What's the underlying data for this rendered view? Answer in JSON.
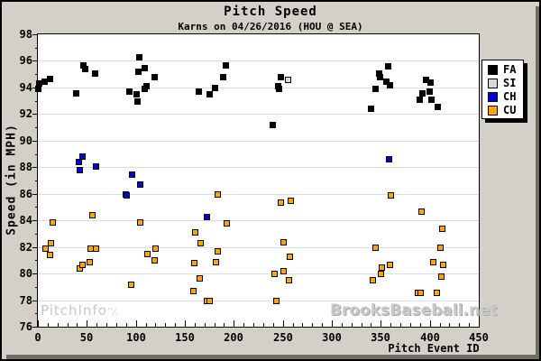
{
  "watermarks": {
    "left": "PitchInfo",
    "right": "BrooksBaseball.net"
  },
  "chart_data": {
    "type": "scatter",
    "title": "Pitch Speed",
    "subtitle": "Karns on 04/26/2016 (HOU @ SEA)",
    "xlabel": "Pitch Event ID",
    "ylabel": "Speed (in MPH)",
    "xlim": [
      0,
      450
    ],
    "ylim": [
      76,
      98
    ],
    "x_tick_step_major": 50,
    "x_tick_step_minor": 10,
    "y_tick_step_major": 2,
    "y_tick_step_minor": 1,
    "grid": "horizontal",
    "gridline_values": [
      78,
      80,
      82,
      84,
      86,
      88,
      90,
      92,
      94,
      96
    ],
    "legend_position": "right-outside",
    "plot_bg": "#ffffff",
    "page_bg": "#d4d0c8",
    "series": [
      {
        "name": "FA",
        "color": "#000000",
        "points": [
          [
            0,
            93.9
          ],
          [
            1,
            94.3
          ],
          [
            6,
            94.5
          ],
          [
            12,
            94.7
          ],
          [
            39,
            93.6
          ],
          [
            46,
            95.7
          ],
          [
            48,
            95.4
          ],
          [
            58,
            95.1
          ],
          [
            93,
            93.7
          ],
          [
            100,
            93.5
          ],
          [
            101,
            93.0
          ],
          [
            102,
            95.2
          ],
          [
            103,
            96.3
          ],
          [
            109,
            95.5
          ],
          [
            109,
            93.9
          ],
          [
            110,
            94.1
          ],
          [
            119,
            94.8
          ],
          [
            164,
            93.7
          ],
          [
            175,
            93.5
          ],
          [
            180,
            94.0
          ],
          [
            189,
            94.8
          ],
          [
            191,
            95.7
          ],
          [
            239,
            91.2
          ],
          [
            245,
            94.1
          ],
          [
            246,
            93.9
          ],
          [
            248,
            94.8
          ],
          [
            340,
            92.4
          ],
          [
            344,
            93.9
          ],
          [
            348,
            95.1
          ],
          [
            349,
            94.8
          ],
          [
            355,
            94.5
          ],
          [
            357,
            95.6
          ],
          [
            359,
            94.2
          ],
          [
            389,
            93.1
          ],
          [
            392,
            93.6
          ],
          [
            396,
            94.6
          ],
          [
            399,
            93.7
          ],
          [
            400,
            94.4
          ],
          [
            401,
            93.1
          ],
          [
            408,
            92.6
          ]
        ]
      },
      {
        "name": "SI",
        "color": "#d9d9d9",
        "points": [
          [
            255,
            94.6
          ]
        ]
      },
      {
        "name": "CH",
        "color": "#0000d2",
        "points": [
          [
            41,
            88.4
          ],
          [
            42,
            87.8
          ],
          [
            45,
            88.8
          ],
          [
            59,
            88.1
          ],
          [
            89,
            86.0
          ],
          [
            90,
            85.9
          ],
          [
            96,
            87.5
          ],
          [
            104,
            86.7
          ],
          [
            172,
            84.3
          ],
          [
            358,
            88.6
          ]
        ]
      },
      {
        "name": "CU",
        "color": "#ffa500",
        "points": [
          [
            7,
            81.9
          ],
          [
            12,
            81.4
          ],
          [
            13,
            82.3
          ],
          [
            15,
            83.9
          ],
          [
            42,
            80.4
          ],
          [
            45,
            80.7
          ],
          [
            52,
            80.9
          ],
          [
            53,
            81.9
          ],
          [
            55,
            84.4
          ],
          [
            59,
            81.9
          ],
          [
            95,
            79.2
          ],
          [
            104,
            83.9
          ],
          [
            111,
            81.5
          ],
          [
            119,
            81.0
          ],
          [
            120,
            81.9
          ],
          [
            158,
            78.7
          ],
          [
            159,
            80.8
          ],
          [
            160,
            83.1
          ],
          [
            165,
            79.7
          ],
          [
            166,
            82.3
          ],
          [
            172,
            78.0
          ],
          [
            175,
            78.0
          ],
          [
            181,
            80.9
          ],
          [
            183,
            86.0
          ],
          [
            183,
            81.7
          ],
          [
            192,
            83.8
          ],
          [
            241,
            80.0
          ],
          [
            243,
            78.0
          ],
          [
            248,
            85.4
          ],
          [
            250,
            82.4
          ],
          [
            250,
            80.2
          ],
          [
            256,
            79.5
          ],
          [
            257,
            81.3
          ],
          [
            258,
            85.5
          ],
          [
            341,
            79.5
          ],
          [
            344,
            82.0
          ],
          [
            350,
            80.0
          ],
          [
            351,
            80.5
          ],
          [
            359,
            80.7
          ],
          [
            360,
            85.9
          ],
          [
            387,
            78.6
          ],
          [
            390,
            78.6
          ],
          [
            391,
            84.7
          ],
          [
            403,
            80.9
          ],
          [
            407,
            78.6
          ],
          [
            410,
            82.0
          ],
          [
            411,
            79.8
          ],
          [
            412,
            83.4
          ],
          [
            413,
            80.7
          ]
        ]
      }
    ]
  }
}
